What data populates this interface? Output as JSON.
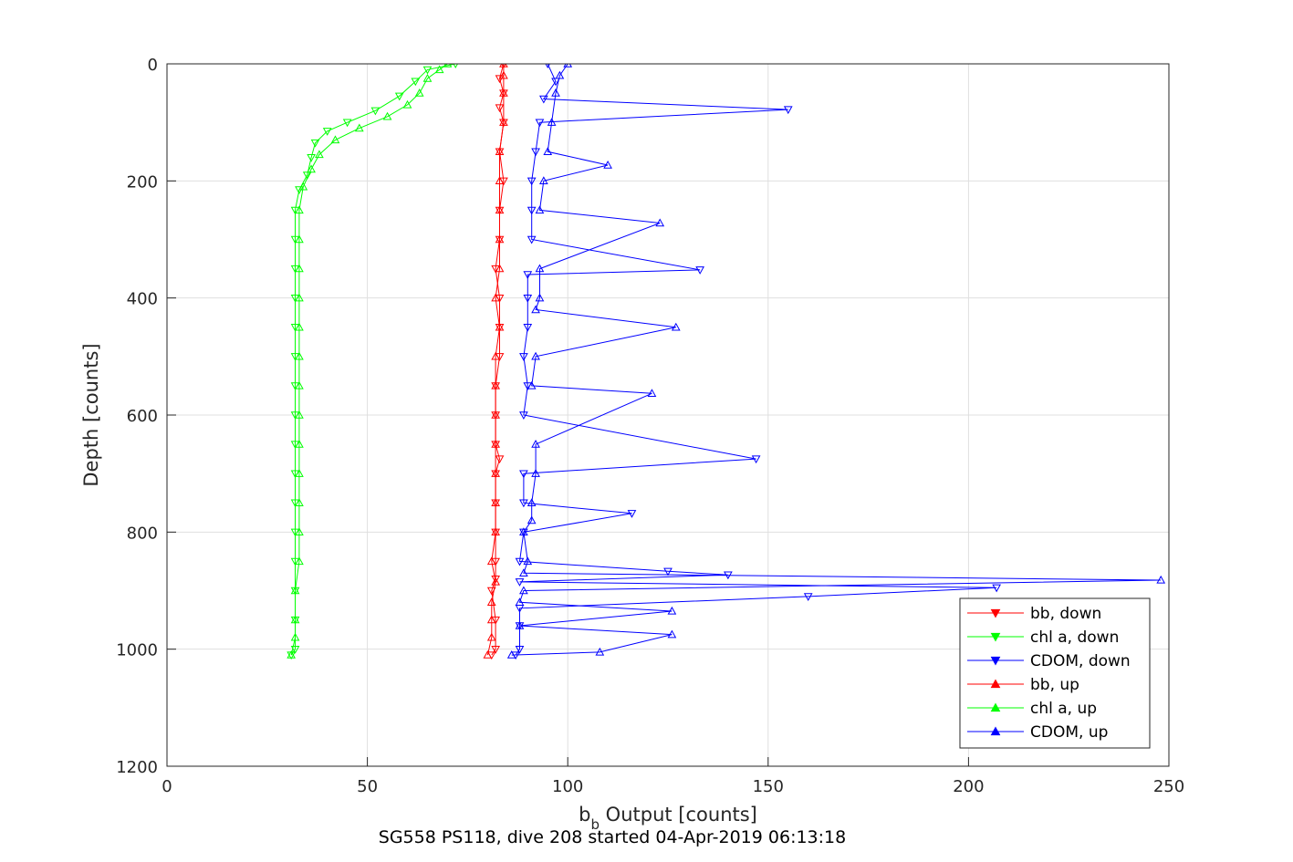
{
  "chart_data": {
    "type": "line",
    "xlabel_main": "b",
    "xlabel_sub": "b",
    "xlabel_rest": " Output [counts]",
    "ylabel": "Depth [counts]",
    "subtitle": "SG558 PS118, dive 208 started 04-Apr-2019 06:13:18",
    "xlim": [
      0,
      250
    ],
    "ylim": [
      0,
      1200
    ],
    "y_reversed": true,
    "grid": true,
    "x_ticks": [
      "0",
      "50",
      "100",
      "150",
      "200",
      "250"
    ],
    "y_ticks": [
      "0",
      "200",
      "400",
      "600",
      "800",
      "1000",
      "1200"
    ],
    "legend_position": "bottom-right",
    "series": [
      {
        "name": "bb, down",
        "color": "#ff0000",
        "marker": "triangle-down",
        "points": [
          [
            84,
            0
          ],
          [
            83,
            25
          ],
          [
            84,
            50
          ],
          [
            83,
            75
          ],
          [
            84,
            100
          ],
          [
            83,
            150
          ],
          [
            84,
            200
          ],
          [
            83,
            250
          ],
          [
            83,
            300
          ],
          [
            82,
            350
          ],
          [
            83,
            400
          ],
          [
            83,
            450
          ],
          [
            83,
            500
          ],
          [
            82,
            550
          ],
          [
            82,
            600
          ],
          [
            82,
            650
          ],
          [
            83,
            675
          ],
          [
            82,
            700
          ],
          [
            82,
            750
          ],
          [
            82,
            800
          ],
          [
            82,
            850
          ],
          [
            82,
            880
          ],
          [
            81,
            900
          ],
          [
            82,
            950
          ],
          [
            82,
            1000
          ],
          [
            81,
            1010
          ]
        ]
      },
      {
        "name": "chl a, down",
        "color": "#00ff00",
        "marker": "triangle-down",
        "points": [
          [
            72,
            0
          ],
          [
            65,
            10
          ],
          [
            62,
            30
          ],
          [
            58,
            55
          ],
          [
            52,
            80
          ],
          [
            45,
            100
          ],
          [
            40,
            115
          ],
          [
            37,
            135
          ],
          [
            36,
            160
          ],
          [
            35,
            190
          ],
          [
            33,
            215
          ],
          [
            32,
            250
          ],
          [
            32,
            300
          ],
          [
            32,
            350
          ],
          [
            32,
            400
          ],
          [
            32,
            450
          ],
          [
            32,
            500
          ],
          [
            32,
            550
          ],
          [
            32,
            600
          ],
          [
            32,
            650
          ],
          [
            32,
            700
          ],
          [
            32,
            750
          ],
          [
            32,
            800
          ],
          [
            32,
            850
          ],
          [
            32,
            900
          ],
          [
            32,
            950
          ],
          [
            32,
            1000
          ],
          [
            31,
            1010
          ]
        ]
      },
      {
        "name": "CDOM, down",
        "color": "#0000ff",
        "marker": "triangle-down",
        "points": [
          [
            95,
            0
          ],
          [
            97,
            30
          ],
          [
            94,
            60
          ],
          [
            155,
            78
          ],
          [
            93,
            100
          ],
          [
            92,
            150
          ],
          [
            91,
            200
          ],
          [
            91,
            250
          ],
          [
            91,
            300
          ],
          [
            133,
            352
          ],
          [
            90,
            360
          ],
          [
            90,
            400
          ],
          [
            90,
            450
          ],
          [
            89,
            500
          ],
          [
            90,
            550
          ],
          [
            89,
            600
          ],
          [
            147,
            675
          ],
          [
            89,
            700
          ],
          [
            89,
            750
          ],
          [
            116,
            768
          ],
          [
            89,
            800
          ],
          [
            88,
            850
          ],
          [
            125,
            867
          ],
          [
            140,
            873
          ],
          [
            88,
            885
          ],
          [
            207,
            895
          ],
          [
            160,
            910
          ],
          [
            88,
            930
          ],
          [
            88,
            960
          ],
          [
            88,
            1000
          ],
          [
            87,
            1010
          ]
        ]
      },
      {
        "name": "bb, up",
        "color": "#ff0000",
        "marker": "triangle-up",
        "points": [
          [
            80,
            1010
          ],
          [
            81,
            980
          ],
          [
            81,
            950
          ],
          [
            81,
            920
          ],
          [
            82,
            885
          ],
          [
            81,
            850
          ],
          [
            82,
            800
          ],
          [
            82,
            750
          ],
          [
            82,
            700
          ],
          [
            82,
            650
          ],
          [
            82,
            600
          ],
          [
            82,
            550
          ],
          [
            82,
            500
          ],
          [
            83,
            450
          ],
          [
            82,
            400
          ],
          [
            83,
            350
          ],
          [
            83,
            300
          ],
          [
            83,
            250
          ],
          [
            83,
            200
          ],
          [
            83,
            150
          ],
          [
            84,
            100
          ],
          [
            84,
            50
          ],
          [
            84,
            20
          ],
          [
            84,
            0
          ]
        ]
      },
      {
        "name": "chl a, up",
        "color": "#00ff00",
        "marker": "triangle-up",
        "points": [
          [
            31,
            1010
          ],
          [
            32,
            980
          ],
          [
            32,
            950
          ],
          [
            32,
            900
          ],
          [
            33,
            850
          ],
          [
            33,
            800
          ],
          [
            33,
            750
          ],
          [
            33,
            700
          ],
          [
            33,
            650
          ],
          [
            33,
            600
          ],
          [
            33,
            550
          ],
          [
            33,
            500
          ],
          [
            33,
            450
          ],
          [
            33,
            400
          ],
          [
            33,
            350
          ],
          [
            33,
            300
          ],
          [
            33,
            250
          ],
          [
            34,
            210
          ],
          [
            36,
            180
          ],
          [
            38,
            155
          ],
          [
            42,
            130
          ],
          [
            48,
            110
          ],
          [
            55,
            90
          ],
          [
            60,
            70
          ],
          [
            63,
            50
          ],
          [
            65,
            25
          ],
          [
            68,
            10
          ],
          [
            70,
            0
          ]
        ]
      },
      {
        "name": "CDOM, up",
        "color": "#0000ff",
        "marker": "triangle-up",
        "points": [
          [
            86,
            1010
          ],
          [
            108,
            1005
          ],
          [
            126,
            975
          ],
          [
            88,
            960
          ],
          [
            126,
            935
          ],
          [
            88,
            920
          ],
          [
            89,
            900
          ],
          [
            248,
            882
          ],
          [
            89,
            870
          ],
          [
            90,
            850
          ],
          [
            89,
            800
          ],
          [
            91,
            780
          ],
          [
            91,
            750
          ],
          [
            92,
            700
          ],
          [
            92,
            650
          ],
          [
            121,
            563
          ],
          [
            91,
            550
          ],
          [
            92,
            500
          ],
          [
            127,
            450
          ],
          [
            92,
            420
          ],
          [
            93,
            400
          ],
          [
            93,
            350
          ],
          [
            123,
            272
          ],
          [
            93,
            250
          ],
          [
            94,
            200
          ],
          [
            110,
            173
          ],
          [
            95,
            150
          ],
          [
            96,
            100
          ],
          [
            97,
            50
          ],
          [
            98,
            20
          ],
          [
            100,
            0
          ]
        ]
      }
    ]
  }
}
